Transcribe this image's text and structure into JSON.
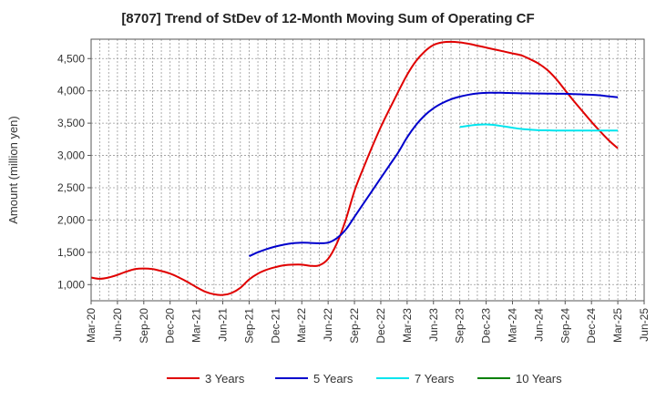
{
  "chart_data": {
    "type": "line",
    "title": "[8707]  Trend of StDev of 12-Month Moving Sum of Operating CF",
    "xlabel": "",
    "ylabel": "Amount (million yen)",
    "ylim": [
      750,
      4800
    ],
    "yticks": [
      1000,
      1500,
      2000,
      2500,
      3000,
      3500,
      4000,
      4500
    ],
    "ytick_labels": [
      "1,000",
      "1,500",
      "2,000",
      "2,500",
      "3,000",
      "3,500",
      "4,000",
      "4,500"
    ],
    "xticks": [
      "Mar-20",
      "Jun-20",
      "Sep-20",
      "Dec-20",
      "Mar-21",
      "Jun-21",
      "Sep-21",
      "Dec-21",
      "Mar-22",
      "Jun-22",
      "Sep-22",
      "Dec-22",
      "Mar-23",
      "Jun-23",
      "Sep-23",
      "Dec-23",
      "Mar-24",
      "Jun-24",
      "Sep-24",
      "Dec-24",
      "Mar-25",
      "Jun-25"
    ],
    "grid": true,
    "legend_position": "bottom",
    "series": [
      {
        "name": "3 Years",
        "color": "#e00000",
        "x": [
          "Mar-20",
          "Apr-20",
          "May-20",
          "Jun-20",
          "Jul-20",
          "Aug-20",
          "Sep-20",
          "Oct-20",
          "Nov-20",
          "Dec-20",
          "Jan-21",
          "Feb-21",
          "Mar-21",
          "Apr-21",
          "May-21",
          "Jun-21",
          "Jul-21",
          "Aug-21",
          "Sep-21",
          "Oct-21",
          "Nov-21",
          "Dec-21",
          "Jan-22",
          "Feb-22",
          "Mar-22",
          "Apr-22",
          "May-22",
          "Jun-22",
          "Jul-22",
          "Aug-22",
          "Sep-22",
          "Oct-22",
          "Nov-22",
          "Dec-22",
          "Jan-23",
          "Feb-23",
          "Mar-23",
          "Apr-23",
          "May-23",
          "Jun-23",
          "Jul-23",
          "Aug-23",
          "Sep-23",
          "Oct-23",
          "Nov-23",
          "Dec-23",
          "Jan-24",
          "Feb-24",
          "Mar-24",
          "Apr-24",
          "May-24",
          "Jun-24",
          "Jul-24",
          "Aug-24",
          "Sep-24",
          "Oct-24",
          "Nov-24",
          "Dec-24",
          "Jan-25",
          "Feb-25",
          "Mar-25"
        ],
        "values": [
          1110,
          1090,
          1110,
          1150,
          1200,
          1240,
          1250,
          1240,
          1210,
          1170,
          1110,
          1040,
          960,
          890,
          850,
          840,
          870,
          950,
          1080,
          1170,
          1230,
          1270,
          1300,
          1310,
          1310,
          1290,
          1300,
          1400,
          1640,
          2000,
          2450,
          2800,
          3130,
          3440,
          3720,
          3990,
          4250,
          4460,
          4610,
          4710,
          4750,
          4760,
          4750,
          4730,
          4700,
          4670,
          4640,
          4610,
          4580,
          4550,
          4490,
          4420,
          4320,
          4180,
          4010,
          3840,
          3680,
          3520,
          3370,
          3230,
          3110
        ]
      },
      {
        "name": "5 Years",
        "color": "#0000cc",
        "x": [
          "Sep-21",
          "Oct-21",
          "Nov-21",
          "Dec-21",
          "Jan-22",
          "Feb-22",
          "Mar-22",
          "Apr-22",
          "May-22",
          "Jun-22",
          "Jul-22",
          "Aug-22",
          "Sep-22",
          "Oct-22",
          "Nov-22",
          "Dec-22",
          "Jan-23",
          "Feb-23",
          "Mar-23",
          "Apr-23",
          "May-23",
          "Jun-23",
          "Jul-23",
          "Aug-23",
          "Sep-23",
          "Oct-23",
          "Nov-23",
          "Dec-23",
          "Jan-24",
          "Feb-24",
          "Mar-24",
          "Apr-24",
          "May-24",
          "Jun-24",
          "Jul-24",
          "Aug-24",
          "Sep-24",
          "Oct-24",
          "Nov-24",
          "Dec-24",
          "Jan-25",
          "Feb-25",
          "Mar-25"
        ],
        "values": [
          1440,
          1500,
          1550,
          1590,
          1620,
          1640,
          1650,
          1645,
          1640,
          1650,
          1720,
          1850,
          2050,
          2250,
          2450,
          2650,
          2850,
          3050,
          3280,
          3470,
          3620,
          3730,
          3810,
          3870,
          3910,
          3940,
          3960,
          3970,
          3970,
          3970,
          3965,
          3962,
          3960,
          3958,
          3957,
          3955,
          3955,
          3950,
          3945,
          3940,
          3930,
          3915,
          3900
        ]
      },
      {
        "name": "7 Years",
        "color": "#00e5ee",
        "x": [
          "Sep-23",
          "Oct-23",
          "Nov-23",
          "Dec-23",
          "Jan-24",
          "Feb-24",
          "Mar-24",
          "Apr-24",
          "May-24",
          "Jun-24",
          "Jul-24",
          "Aug-24",
          "Sep-24",
          "Oct-24",
          "Nov-24",
          "Dec-24",
          "Jan-25",
          "Feb-25",
          "Mar-25"
        ],
        "values": [
          3440,
          3460,
          3475,
          3480,
          3470,
          3450,
          3430,
          3410,
          3400,
          3390,
          3388,
          3385,
          3385,
          3385,
          3385,
          3385,
          3385,
          3385,
          3385
        ]
      },
      {
        "name": "10 Years",
        "color": "#008000",
        "x": [],
        "values": []
      }
    ]
  }
}
